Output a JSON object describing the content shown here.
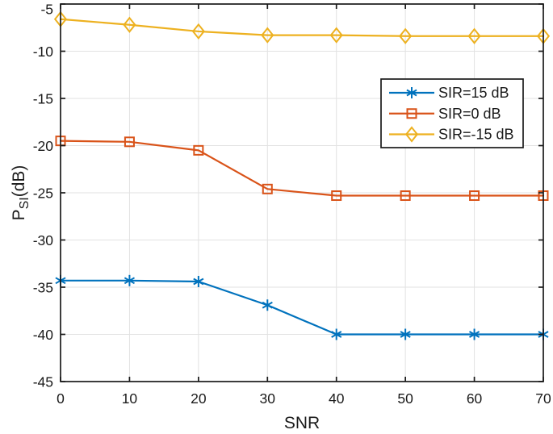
{
  "chart_data": {
    "type": "line",
    "title": "",
    "xlabel": "SNR",
    "ylabel_parts": {
      "base": "P",
      "sub": "SI",
      "suffix": "(dB)"
    },
    "x": [
      0,
      10,
      20,
      30,
      40,
      50,
      60,
      70
    ],
    "xlim": [
      0,
      70
    ],
    "ylim": [
      -45,
      -5
    ],
    "xticks": [
      0,
      10,
      20,
      30,
      40,
      50,
      60,
      70
    ],
    "yticks": [
      -45,
      -40,
      -35,
      -30,
      -25,
      -20,
      -15,
      -10,
      -5
    ],
    "grid": true,
    "grid_color": "#e2e2e2",
    "axis_color": "#1a1a1a",
    "background_color": "#ffffff",
    "legend": {
      "position": "upper-right-inside",
      "background": "#ffffff",
      "border_color": "#1a1a1a",
      "entries": [
        "SIR=15 dB",
        "SIR=0 dB",
        "SIR=-15 dB"
      ]
    },
    "series": [
      {
        "name": "SIR=15 dB",
        "color": "#0072BD",
        "marker": "asterisk",
        "values": [
          -34.3,
          -34.3,
          -34.4,
          -36.9,
          -40.0,
          -40.0,
          -40.0,
          -40.0
        ]
      },
      {
        "name": "SIR=0 dB",
        "color": "#D95319",
        "marker": "square",
        "values": [
          -19.5,
          -19.6,
          -20.5,
          -24.6,
          -25.3,
          -25.3,
          -25.3,
          -25.3
        ]
      },
      {
        "name": "SIR=-15 dB",
        "color": "#EDB120",
        "marker": "diamond",
        "values": [
          -6.6,
          -7.2,
          -7.9,
          -8.3,
          -8.3,
          -8.4,
          -8.4,
          -8.4
        ]
      }
    ]
  }
}
